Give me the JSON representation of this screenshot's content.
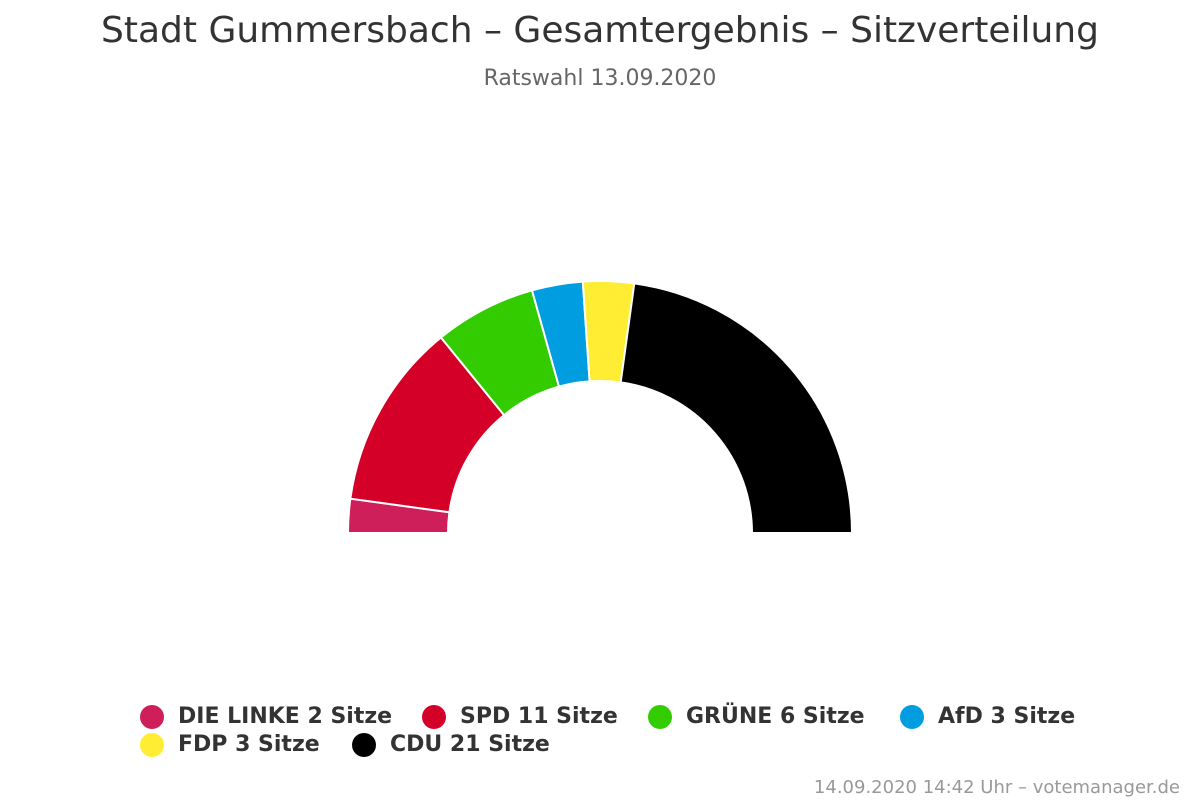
{
  "chart_data": {
    "type": "pie",
    "variant": "semicircle",
    "title": "Stadt Gummersbach – Gesamtergebnis – Sitzverteilung",
    "subtitle": "Ratswahl 13.09.2020",
    "slices": [
      {
        "name": "DIE LINKE",
        "value": 2,
        "color": "#cf1f5b",
        "legend": "DIE LINKE 2 Sitze"
      },
      {
        "name": "SPD",
        "value": 11,
        "color": "#d40027",
        "legend": "SPD 11 Sitze"
      },
      {
        "name": "GRÜNE",
        "value": 6,
        "color": "#33cc00",
        "legend": "GRÜNE 6 Sitze"
      },
      {
        "name": "AfD",
        "value": 3,
        "color": "#009ee0",
        "legend": "AfD 3 Sitze"
      },
      {
        "name": "FDP",
        "value": 3,
        "color": "#ffed33",
        "legend": "FDP 3 Sitze"
      },
      {
        "name": "CDU",
        "value": 21,
        "color": "#000000",
        "legend": "CDU 21 Sitze"
      }
    ],
    "legend_position": "bottom"
  },
  "credits": "14.09.2020 14:42 Uhr – votemanager.de"
}
